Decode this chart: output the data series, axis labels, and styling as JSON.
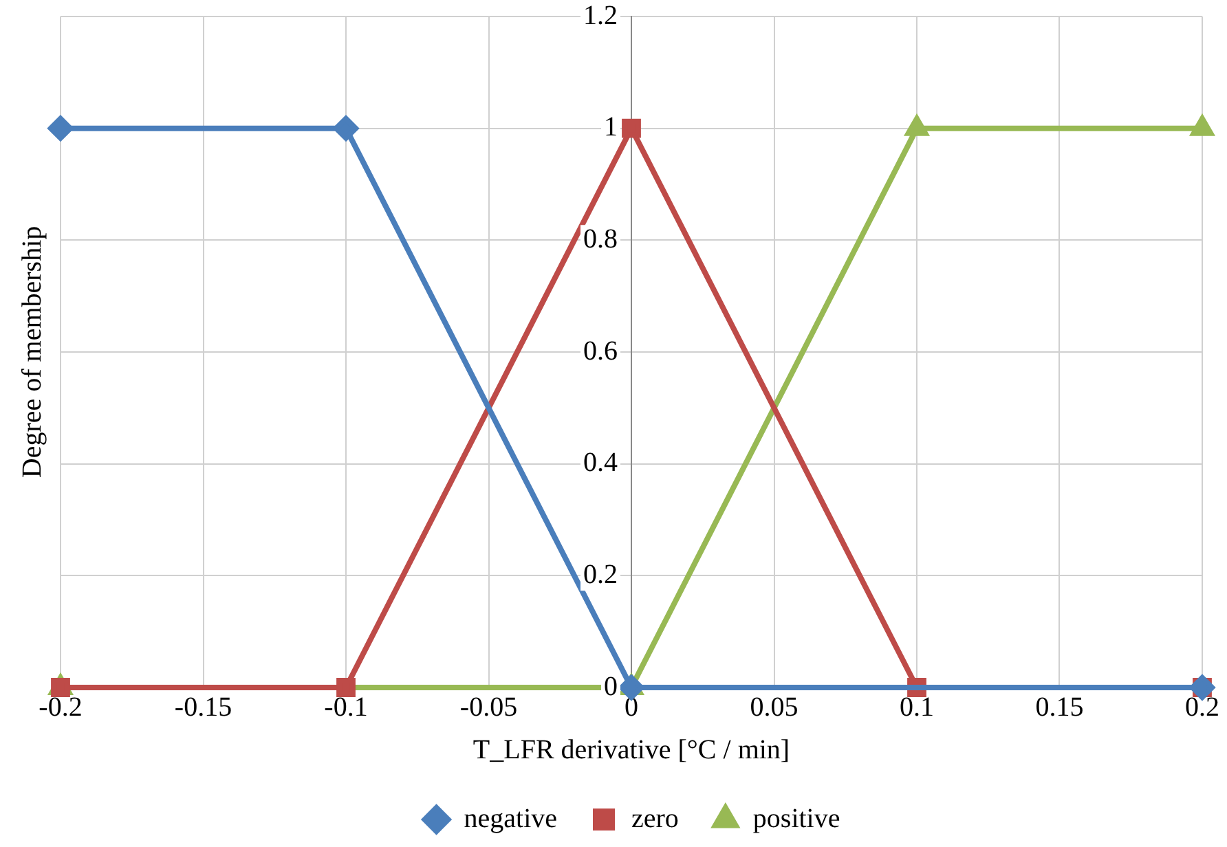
{
  "chart_data": {
    "type": "line",
    "xlabel": "T_LFR derivative [°C / min]",
    "ylabel": "Degree of membership",
    "xlim": [
      -0.2,
      0.2
    ],
    "xticks": [
      -0.2,
      -0.15,
      -0.1,
      -0.05,
      0,
      0.05,
      0.1,
      0.15,
      0.2
    ],
    "ylim": [
      0,
      1.2
    ],
    "yticks": [
      0,
      0.2,
      0.4,
      0.6,
      0.8,
      1,
      1.2
    ],
    "grid": true,
    "legend": "bottom",
    "series": [
      {
        "name": "negative",
        "color": "#4a7ebb",
        "marker": "diamond",
        "x": [
          -0.2,
          -0.1,
          0,
          0.2
        ],
        "values": [
          1,
          1,
          0,
          0
        ]
      },
      {
        "name": "zero",
        "color": "#be4b48",
        "marker": "square",
        "x": [
          -0.2,
          -0.1,
          0,
          0.1,
          0.2
        ],
        "values": [
          0,
          0,
          1,
          0,
          0
        ]
      },
      {
        "name": "positive",
        "color": "#98b954",
        "marker": "triangle",
        "x": [
          -0.2,
          0,
          0.1,
          0.2
        ],
        "values": [
          0,
          0,
          1,
          1
        ]
      }
    ]
  }
}
